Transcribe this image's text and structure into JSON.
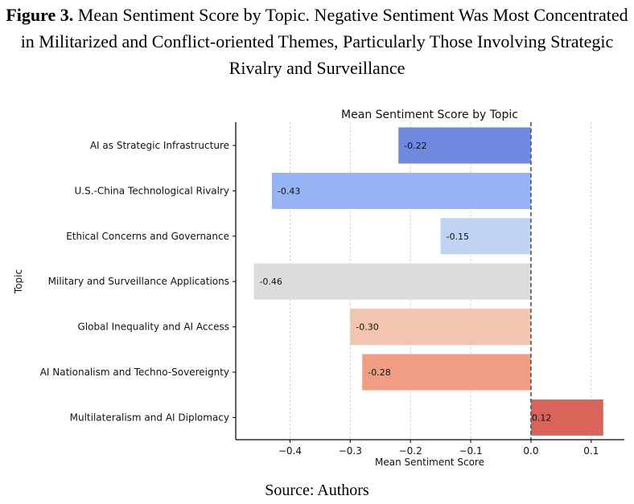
{
  "figure": {
    "label": "Figure 3.",
    "caption": " Mean Sentiment Score by Topic. Negative Sentiment Was Most Concentrated in Militarized and Conflict-oriented Themes, Particularly Those Involving Strategic Rivalry and Surveillance",
    "source": "Source: Authors"
  },
  "chart_data": {
    "type": "bar",
    "orientation": "horizontal",
    "title": "Mean Sentiment Score by Topic",
    "xlabel": "Mean Sentiment Score",
    "ylabel": "Topic",
    "xlim": [
      -0.49,
      0.155
    ],
    "xticks": [
      -0.4,
      -0.3,
      -0.2,
      -0.1,
      0.0,
      0.1
    ],
    "xtick_labels": [
      "−0.4",
      "−0.3",
      "−0.2",
      "−0.1",
      "0.0",
      "0.1"
    ],
    "grid": "vertical dashed",
    "reference_line": 0,
    "categories": [
      "AI as Strategic Infrastructure",
      "U.S.-China Technological Rivalry",
      "Ethical Concerns and Governance",
      "Military and Surveillance Applications",
      "Global Inequality and AI Access",
      "AI Nationalism and Techno-Sovereignty",
      "Multilateralism and AI Diplomacy"
    ],
    "values": [
      -0.22,
      -0.43,
      -0.15,
      -0.46,
      -0.3,
      -0.28,
      0.12
    ],
    "value_labels": [
      "-0.22",
      "-0.43",
      "-0.15",
      "-0.46",
      "-0.30",
      "-0.28",
      "0.12"
    ],
    "colors": [
      "#6e89de",
      "#96b3f3",
      "#bfd3f2",
      "#dddcdc",
      "#f2c5b0",
      "#ef9d83",
      "#d9645a"
    ]
  }
}
